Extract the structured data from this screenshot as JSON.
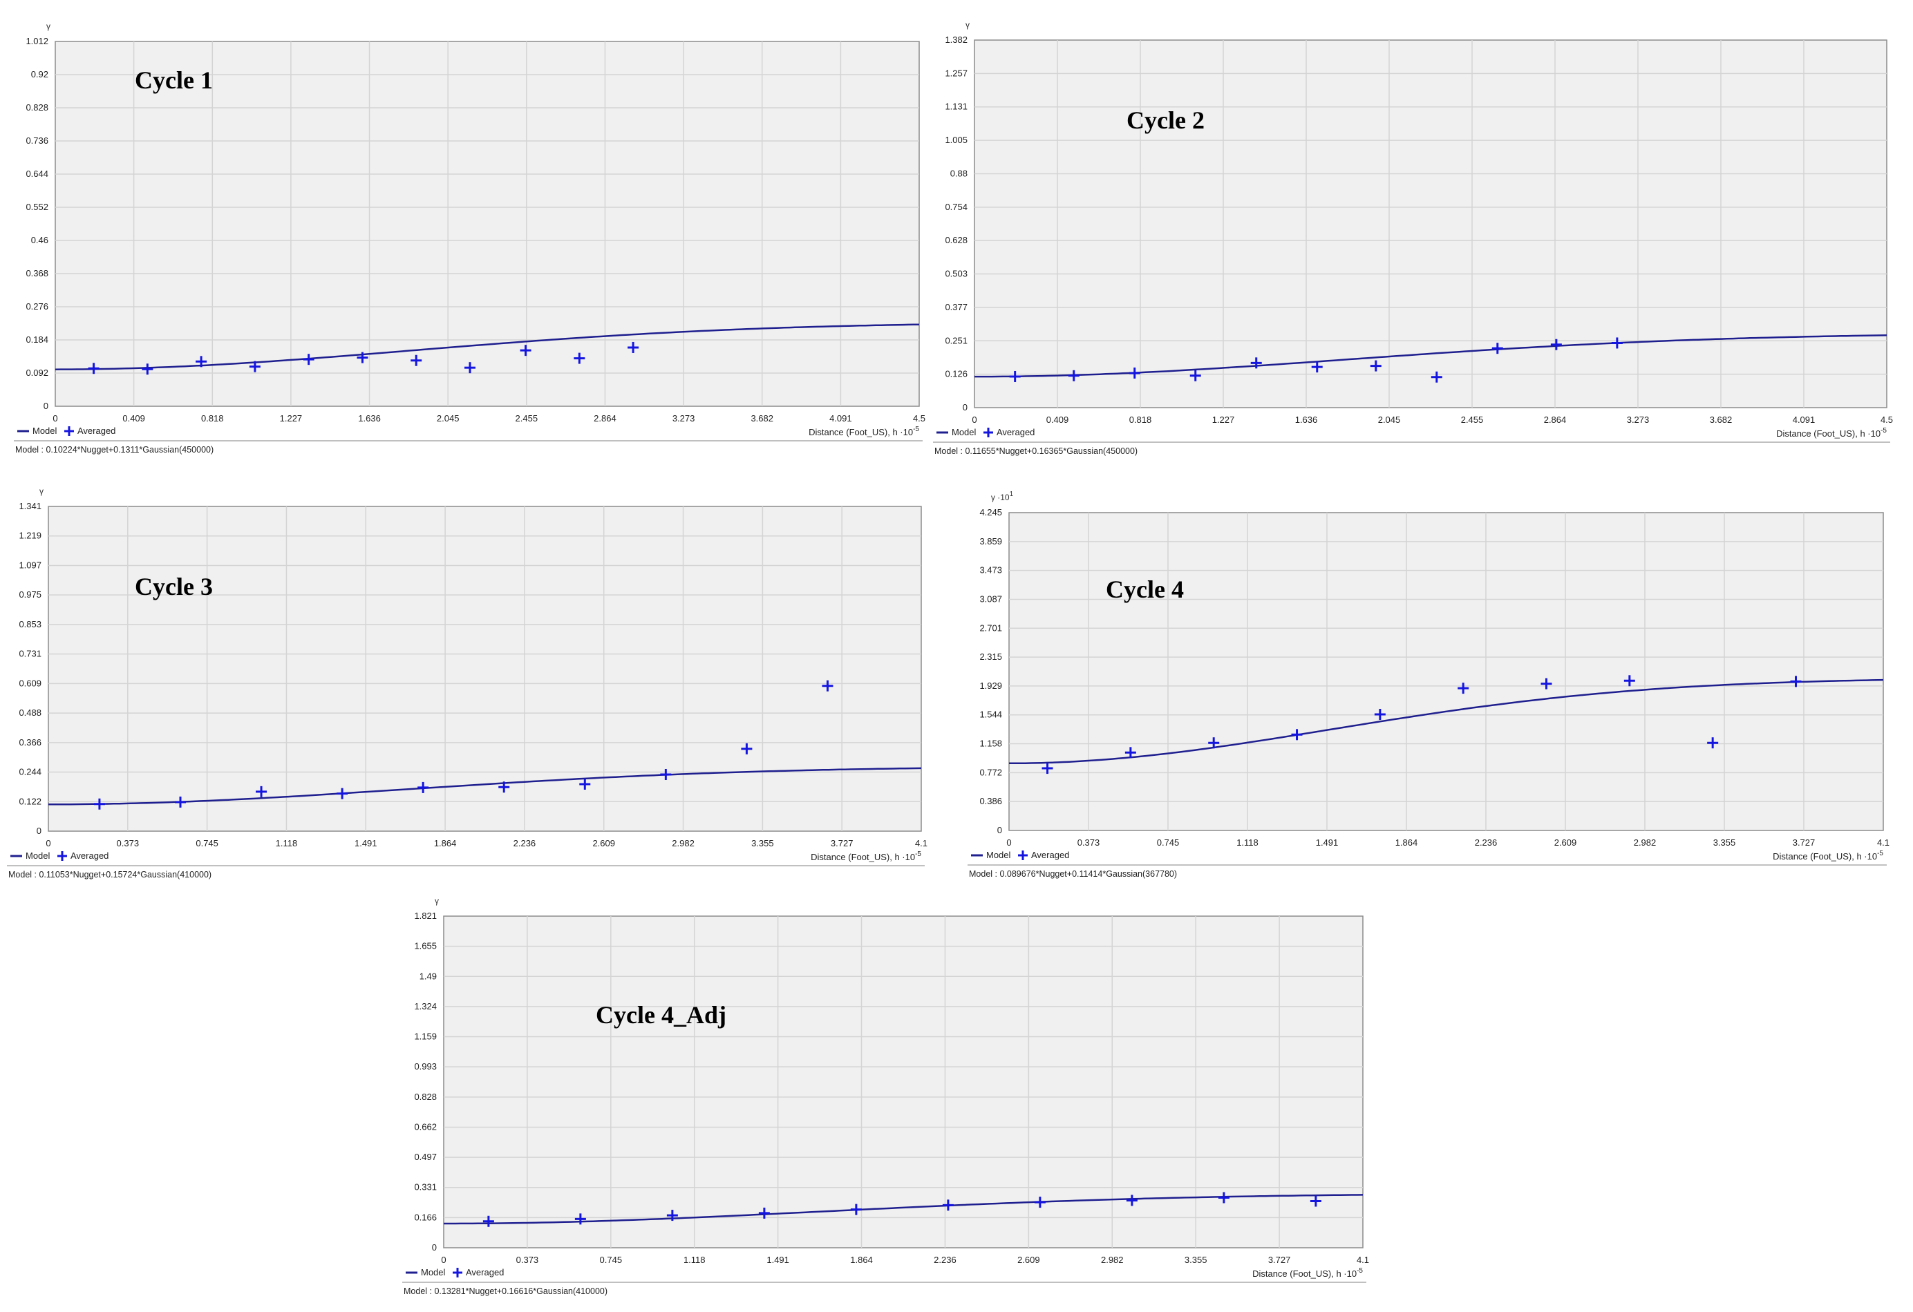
{
  "colors": {
    "model": "#1f1f8f",
    "points": "#1515e0",
    "plot_background": "#f0f0f0",
    "grid": "#d4d4d4"
  },
  "chart_data": [
    {
      "type": "line",
      "title": "Cycle 1",
      "y_symbol": "γ",
      "y_exponent": "",
      "xlabel": "Distance (Foot_US), h ·10",
      "x_exponent": "-5",
      "x_ticks": [
        "0",
        "0.409",
        "0.818",
        "1.227",
        "1.636",
        "2.045",
        "2.455",
        "2.864",
        "3.273",
        "3.682",
        "4.091",
        "4.5"
      ],
      "y_ticks": [
        "0",
        "0.092",
        "0.184",
        "0.276",
        "0.368",
        "0.46",
        "0.552",
        "0.644",
        "0.736",
        "0.828",
        "0.92",
        "1.012"
      ],
      "xlim": [
        0,
        4.5
      ],
      "ylim": [
        0,
        1.012
      ],
      "legend": [
        "Model",
        "Averaged"
      ],
      "legend_position": "bottom-left",
      "grid": true,
      "model_formula": "Model : 0.10224*Nugget+0.1311*Gaussian(450000)",
      "model_params": {
        "nugget": 0.10224,
        "partial_sill": 0.1311,
        "range": 4.5
      },
      "series": [
        {
          "name": "Averaged",
          "x": [
            0.2,
            0.48,
            0.76,
            1.04,
            1.32,
            1.6,
            1.88,
            2.16,
            2.45,
            2.73,
            3.01
          ],
          "y": [
            0.105,
            0.103,
            0.124,
            0.11,
            0.13,
            0.135,
            0.127,
            0.107,
            0.155,
            0.133,
            0.163
          ]
        }
      ]
    },
    {
      "type": "line",
      "title": "Cycle 2",
      "y_symbol": "γ",
      "y_exponent": "",
      "xlabel": "Distance (Foot_US), h ·10",
      "x_exponent": "-5",
      "x_ticks": [
        "0",
        "0.409",
        "0.818",
        "1.227",
        "1.636",
        "2.045",
        "2.455",
        "2.864",
        "3.273",
        "3.682",
        "4.091",
        "4.5"
      ],
      "y_ticks": [
        "0",
        "0.126",
        "0.251",
        "0.377",
        "0.503",
        "0.628",
        "0.754",
        "0.88",
        "1.005",
        "1.131",
        "1.257",
        "1.382"
      ],
      "xlim": [
        0,
        4.5
      ],
      "ylim": [
        0,
        1.382
      ],
      "legend": [
        "Model",
        "Averaged"
      ],
      "legend_position": "bottom-left",
      "grid": true,
      "model_formula": "Model : 0.11655*Nugget+0.16365*Gaussian(450000)",
      "model_params": {
        "nugget": 0.11655,
        "partial_sill": 0.16365,
        "range": 4.5
      },
      "series": [
        {
          "name": "Averaged",
          "x": [
            0.2,
            0.49,
            0.79,
            1.09,
            1.39,
            1.69,
            1.98,
            2.28,
            2.58,
            2.87,
            3.17
          ],
          "y": [
            0.117,
            0.12,
            0.13,
            0.12,
            0.168,
            0.153,
            0.157,
            0.115,
            0.223,
            0.237,
            0.243
          ]
        }
      ]
    },
    {
      "type": "line",
      "title": "Cycle 3",
      "y_symbol": "γ",
      "y_exponent": "",
      "xlabel": "Distance (Foot_US), h ·10",
      "x_exponent": "-5",
      "x_ticks": [
        "0",
        "0.373",
        "0.745",
        "1.118",
        "1.491",
        "1.864",
        "2.236",
        "2.609",
        "2.982",
        "3.355",
        "3.727",
        "4.1"
      ],
      "y_ticks": [
        "0",
        "0.122",
        "0.244",
        "0.366",
        "0.488",
        "0.609",
        "0.731",
        "0.853",
        "0.975",
        "1.097",
        "1.219",
        "1.341"
      ],
      "xlim": [
        0,
        4.1
      ],
      "ylim": [
        0,
        1.341
      ],
      "legend": [
        "Model",
        "Averaged"
      ],
      "legend_position": "bottom-left",
      "grid": true,
      "model_formula": "Model : 0.11053*Nugget+0.15724*Gaussian(410000)",
      "model_params": {
        "nugget": 0.11053,
        "partial_sill": 0.15724,
        "range": 4.1
      },
      "series": [
        {
          "name": "Averaged",
          "x": [
            0.24,
            0.62,
            1.0,
            1.38,
            1.76,
            2.14,
            2.52,
            2.9,
            3.28,
            3.66
          ],
          "y": [
            0.112,
            0.12,
            0.163,
            0.155,
            0.18,
            0.182,
            0.194,
            0.234,
            0.34,
            0.6
          ]
        }
      ]
    },
    {
      "type": "line",
      "title": "Cycle 4",
      "y_symbol": "γ ·10",
      "y_exponent": "1",
      "xlabel": "Distance (Foot_US), h ·10",
      "x_exponent": "-5",
      "x_ticks": [
        "0",
        "0.373",
        "0.745",
        "1.118",
        "1.491",
        "1.864",
        "2.236",
        "2.609",
        "2.982",
        "3.355",
        "3.727",
        "4.1"
      ],
      "y_ticks": [
        "0",
        "0.386",
        "0.772",
        "1.158",
        "1.544",
        "1.929",
        "2.315",
        "2.701",
        "3.087",
        "3.473",
        "3.859",
        "4.245"
      ],
      "xlim": [
        0,
        4.1
      ],
      "ylim": [
        0,
        4.245
      ],
      "legend": [
        "Model",
        "Averaged"
      ],
      "legend_position": "bottom-left",
      "grid": true,
      "model_formula": "Model : 0.089676*Nugget+0.11414*Gaussian(367780)",
      "model_params": {
        "nugget": 0.89676,
        "partial_sill": 1.1414,
        "range": 3.6778
      },
      "series": [
        {
          "name": "Averaged",
          "x": [
            0.18,
            0.57,
            0.96,
            1.35,
            1.74,
            2.13,
            2.52,
            2.91,
            3.3,
            3.69
          ],
          "y": [
            0.83,
            1.04,
            1.17,
            1.28,
            1.55,
            1.9,
            1.96,
            2.0,
            1.17,
            1.99
          ]
        }
      ]
    },
    {
      "type": "line",
      "title": "Cycle 4_Adj",
      "y_symbol": "γ",
      "y_exponent": "",
      "xlabel": "Distance (Foot_US), h ·10",
      "x_exponent": "-5",
      "x_ticks": [
        "0",
        "0.373",
        "0.745",
        "1.118",
        "1.491",
        "1.864",
        "2.236",
        "2.609",
        "2.982",
        "3.355",
        "3.727",
        "4.1"
      ],
      "y_ticks": [
        "0",
        "0.166",
        "0.331",
        "0.497",
        "0.662",
        "0.828",
        "0.993",
        "1.159",
        "1.324",
        "1.49",
        "1.655",
        "1.821"
      ],
      "xlim": [
        0,
        4.1
      ],
      "ylim": [
        0,
        1.821
      ],
      "legend": [
        "Model",
        "Averaged"
      ],
      "legend_position": "bottom-left",
      "grid": true,
      "model_formula": "Model : 0.13281*Nugget+0.16616*Gaussian(410000)",
      "model_params": {
        "nugget": 0.13281,
        "partial_sill": 0.16616,
        "range": 4.1
      },
      "series": [
        {
          "name": "Averaged",
          "x": [
            0.2,
            0.61,
            1.02,
            1.43,
            1.84,
            2.25,
            2.66,
            3.07,
            3.48,
            3.89
          ],
          "y": [
            0.145,
            0.158,
            0.178,
            0.19,
            0.21,
            0.234,
            0.25,
            0.26,
            0.275,
            0.256
          ]
        }
      ]
    }
  ]
}
